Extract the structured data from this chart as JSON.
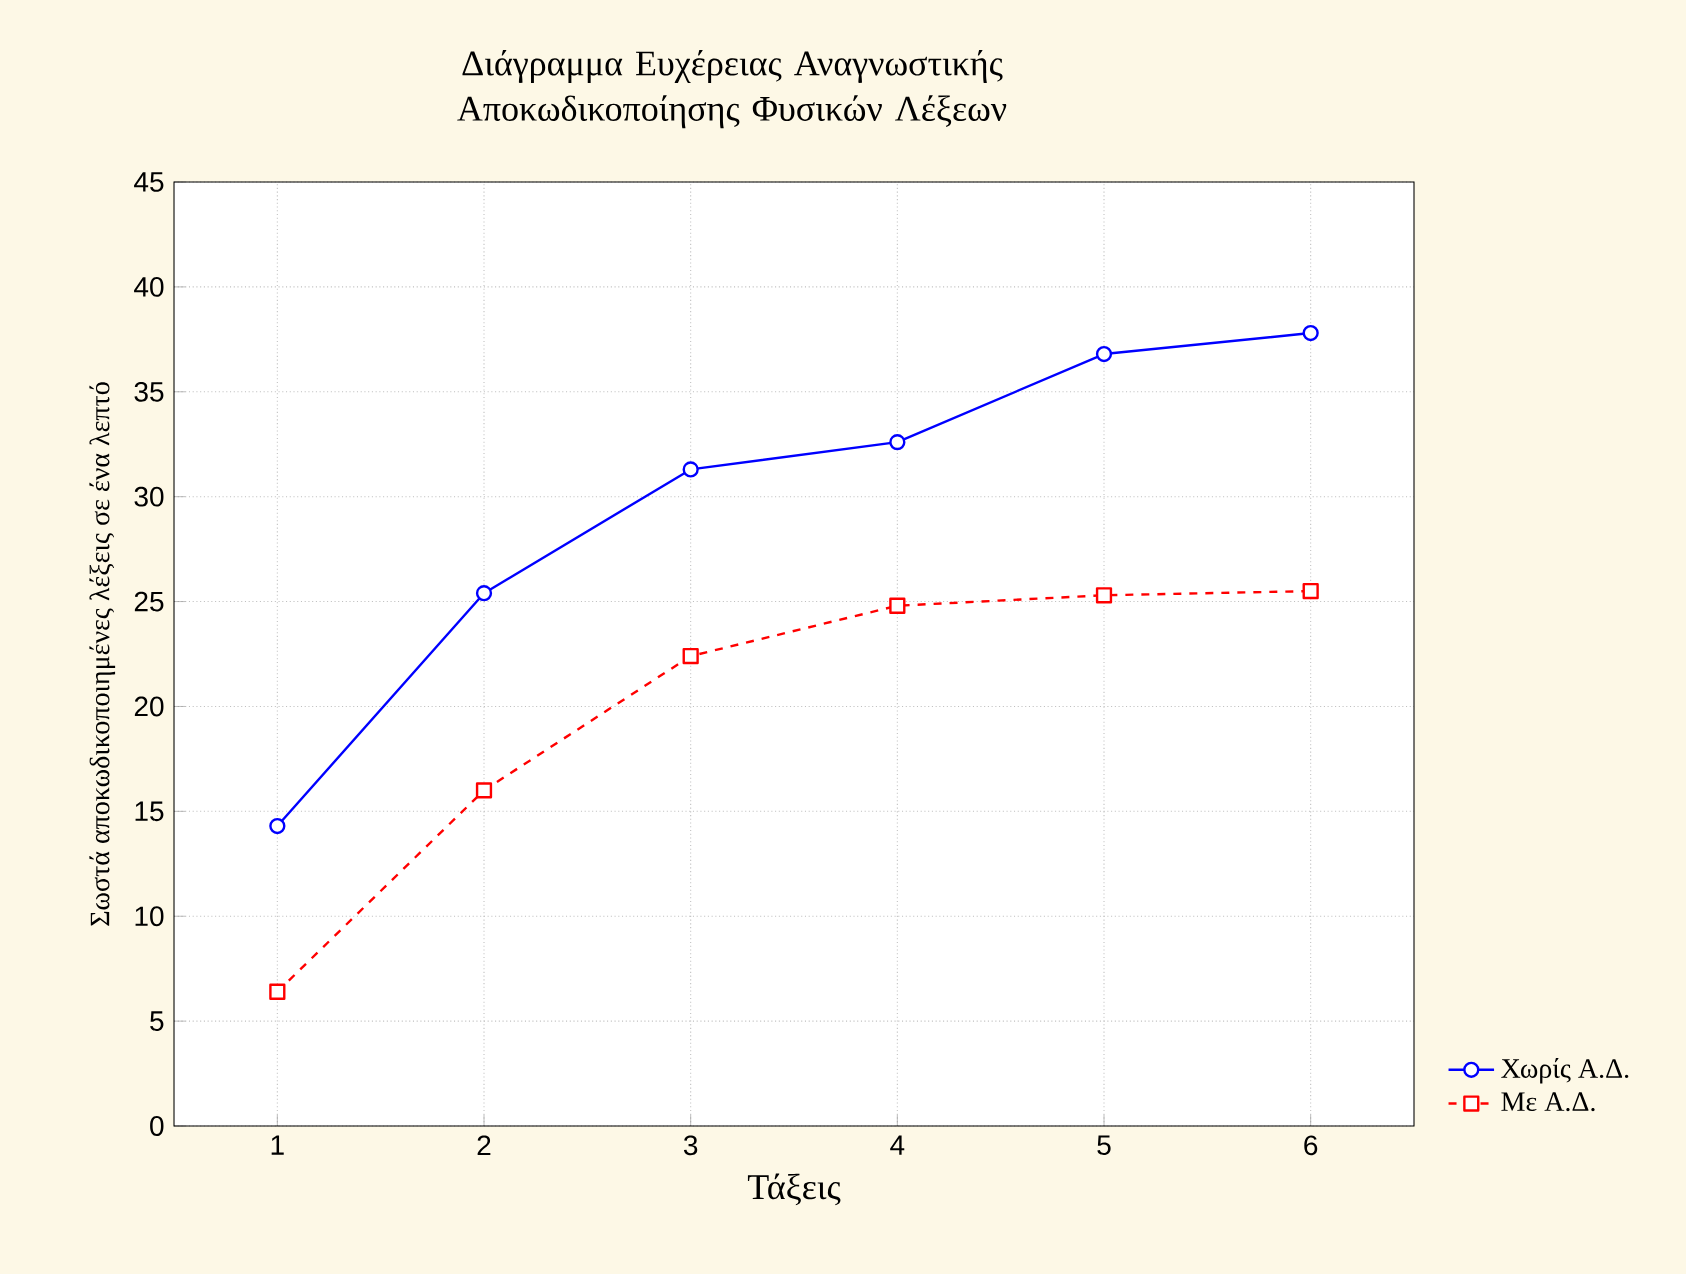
{
  "chart_data": {
    "type": "line",
    "title": "Διάγραμμα Ευχέρειας Αναγνωστικής Αποκωδικοποίησης Φυσικών Λέξεων",
    "xlabel": "Τάξεις",
    "ylabel": "Σωστά αποκωδικοποιημένες λέξεις σε ένα λεπτό",
    "x": [
      1,
      2,
      3,
      4,
      5,
      6
    ],
    "series": [
      {
        "name": "Χωρίς Α.Δ.",
        "color": "#0000ff",
        "marker": "circle",
        "line_style": "solid",
        "values": [
          14.3,
          25.4,
          31.3,
          32.6,
          36.8,
          37.8
        ]
      },
      {
        "name": "Με Α.Δ.",
        "color": "#ff0000",
        "marker": "square",
        "line_style": "dashed",
        "values": [
          6.4,
          16.0,
          22.4,
          24.8,
          25.3,
          25.5
        ]
      }
    ],
    "xlim": [
      0.5,
      6.5
    ],
    "ylim": [
      0,
      45
    ],
    "xticks": [
      1,
      2,
      3,
      4,
      5,
      6
    ],
    "yticks": [
      0,
      5,
      10,
      15,
      20,
      25,
      30,
      35,
      40,
      45
    ],
    "grid": true,
    "legend": "bottom right"
  }
}
